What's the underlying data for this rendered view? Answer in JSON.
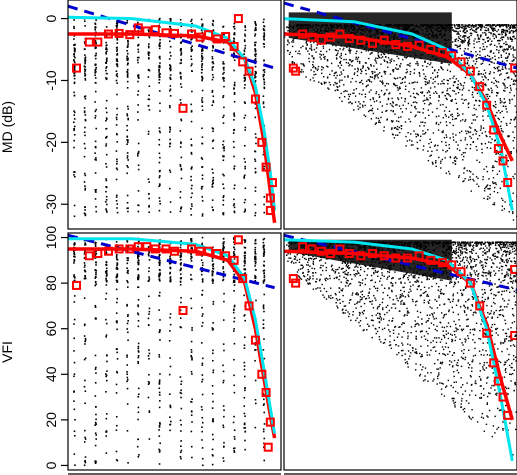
{
  "chart_data": [
    {
      "type": "scatter",
      "panel": "top-left",
      "ylabel": "MD (dB)",
      "ylim": [
        -34,
        3
      ],
      "yticks": [
        0,
        -10,
        -20,
        -30
      ],
      "x_range": [
        0,
        1
      ],
      "columns": [
        0.03,
        0.08,
        0.13,
        0.18,
        0.23,
        0.28,
        0.33,
        0.38,
        0.43,
        0.48,
        0.53,
        0.58,
        0.63,
        0.68,
        0.73,
        0.78,
        0.83,
        0.88,
        0.92
      ],
      "square_points": [
        {
          "x": 0.04,
          "y": -8
        },
        {
          "x": 0.1,
          "y": -3.8
        },
        {
          "x": 0.14,
          "y": -3.8
        },
        {
          "x": 0.19,
          "y": -2.5
        },
        {
          "x": 0.24,
          "y": -2.4
        },
        {
          "x": 0.29,
          "y": -2.6
        },
        {
          "x": 0.33,
          "y": -1.5
        },
        {
          "x": 0.37,
          "y": -2
        },
        {
          "x": 0.41,
          "y": -1.8
        },
        {
          "x": 0.46,
          "y": -2.3
        },
        {
          "x": 0.5,
          "y": -2.4
        },
        {
          "x": 0.54,
          "y": -14.5
        },
        {
          "x": 0.58,
          "y": -2.5
        },
        {
          "x": 0.62,
          "y": -3
        },
        {
          "x": 0.66,
          "y": -2.6
        },
        {
          "x": 0.7,
          "y": -3.3
        },
        {
          "x": 0.74,
          "y": -2.9
        },
        {
          "x": 0.78,
          "y": -4.5
        },
        {
          "x": 0.82,
          "y": -7
        },
        {
          "x": 0.85,
          "y": -8.5
        },
        {
          "x": 0.88,
          "y": -13
        },
        {
          "x": 0.91,
          "y": -20
        },
        {
          "x": 0.93,
          "y": -24
        },
        {
          "x": 0.95,
          "y": -29
        },
        {
          "x": 0.96,
          "y": -26.5
        },
        {
          "x": 0.95,
          "y": -31
        },
        {
          "x": 0.8,
          "y": 0
        }
      ],
      "red_curve": [
        {
          "x": 0.0,
          "y": -2.5
        },
        {
          "x": 0.3,
          "y": -2.5
        },
        {
          "x": 0.6,
          "y": -2.8
        },
        {
          "x": 0.75,
          "y": -3.8
        },
        {
          "x": 0.83,
          "y": -6.5
        },
        {
          "x": 0.88,
          "y": -12
        },
        {
          "x": 0.92,
          "y": -20
        },
        {
          "x": 0.95,
          "y": -28
        },
        {
          "x": 0.97,
          "y": -33
        }
      ],
      "cyan_curve": [
        {
          "x": 0.0,
          "y": 0.2
        },
        {
          "x": 0.3,
          "y": 0
        },
        {
          "x": 0.6,
          "y": -1.2
        },
        {
          "x": 0.75,
          "y": -3.2
        },
        {
          "x": 0.83,
          "y": -6.5
        },
        {
          "x": 0.88,
          "y": -11
        },
        {
          "x": 0.92,
          "y": -18
        },
        {
          "x": 0.95,
          "y": -25
        },
        {
          "x": 0.97,
          "y": -31
        }
      ],
      "dashed_line": [
        {
          "x": 0.0,
          "y": 2
        },
        {
          "x": 0.97,
          "y": -8
        }
      ]
    },
    {
      "type": "scatter",
      "panel": "top-right",
      "ylim": [
        -34,
        3
      ],
      "x_range": [
        0,
        1
      ],
      "square_points": [
        {
          "x": 0.04,
          "y": -8
        },
        {
          "x": 0.05,
          "y": -8.5
        },
        {
          "x": 0.08,
          "y": -2.5
        },
        {
          "x": 0.12,
          "y": -3
        },
        {
          "x": 0.16,
          "y": -3.5
        },
        {
          "x": 0.2,
          "y": -3
        },
        {
          "x": 0.24,
          "y": -2.5
        },
        {
          "x": 0.28,
          "y": -3.2
        },
        {
          "x": 0.33,
          "y": -3.5
        },
        {
          "x": 0.38,
          "y": -4
        },
        {
          "x": 0.43,
          "y": -3.5
        },
        {
          "x": 0.48,
          "y": -4.2
        },
        {
          "x": 0.53,
          "y": -4.5
        },
        {
          "x": 0.58,
          "y": -4.3
        },
        {
          "x": 0.63,
          "y": -5
        },
        {
          "x": 0.68,
          "y": -5.5
        },
        {
          "x": 0.72,
          "y": -6
        },
        {
          "x": 0.76,
          "y": -7
        },
        {
          "x": 0.8,
          "y": -8.5
        },
        {
          "x": 0.84,
          "y": -11
        },
        {
          "x": 0.87,
          "y": -14
        },
        {
          "x": 0.9,
          "y": -18
        },
        {
          "x": 0.92,
          "y": -21
        },
        {
          "x": 0.94,
          "y": -23
        },
        {
          "x": 0.96,
          "y": -26.5
        },
        {
          "x": 0.99,
          "y": -8
        }
      ],
      "red_curve": [
        {
          "x": 0.0,
          "y": -2.5
        },
        {
          "x": 0.3,
          "y": -3
        },
        {
          "x": 0.55,
          "y": -4.5
        },
        {
          "x": 0.7,
          "y": -6.2
        },
        {
          "x": 0.8,
          "y": -9
        },
        {
          "x": 0.87,
          "y": -13.5
        },
        {
          "x": 0.93,
          "y": -19
        },
        {
          "x": 0.98,
          "y": -23
        }
      ],
      "cyan_curve": [
        {
          "x": 0.0,
          "y": 0
        },
        {
          "x": 0.3,
          "y": -0.5
        },
        {
          "x": 0.55,
          "y": -2.5
        },
        {
          "x": 0.7,
          "y": -5
        },
        {
          "x": 0.8,
          "y": -9
        },
        {
          "x": 0.87,
          "y": -14
        },
        {
          "x": 0.93,
          "y": -21
        },
        {
          "x": 0.98,
          "y": -31
        }
      ],
      "dashed_line": [
        {
          "x": 0.0,
          "y": 2.5
        },
        {
          "x": 1.0,
          "y": -8
        }
      ]
    },
    {
      "type": "scatter",
      "panel": "bottom-left",
      "ylabel": "VFI",
      "ylim": [
        -2,
        102
      ],
      "yticks": [
        0,
        20,
        40,
        60,
        80,
        100
      ],
      "x_range": [
        0,
        1
      ],
      "columns": [
        0.03,
        0.08,
        0.13,
        0.18,
        0.23,
        0.28,
        0.33,
        0.38,
        0.43,
        0.48,
        0.53,
        0.58,
        0.63,
        0.68,
        0.73,
        0.78,
        0.83,
        0.88,
        0.92
      ],
      "square_points": [
        {
          "x": 0.04,
          "y": 79
        },
        {
          "x": 0.1,
          "y": 92
        },
        {
          "x": 0.14,
          "y": 93
        },
        {
          "x": 0.19,
          "y": 94
        },
        {
          "x": 0.24,
          "y": 95
        },
        {
          "x": 0.29,
          "y": 95
        },
        {
          "x": 0.33,
          "y": 96
        },
        {
          "x": 0.37,
          "y": 96
        },
        {
          "x": 0.41,
          "y": 95
        },
        {
          "x": 0.46,
          "y": 95
        },
        {
          "x": 0.5,
          "y": 94
        },
        {
          "x": 0.54,
          "y": 68
        },
        {
          "x": 0.58,
          "y": 95
        },
        {
          "x": 0.62,
          "y": 94
        },
        {
          "x": 0.66,
          "y": 94
        },
        {
          "x": 0.7,
          "y": 93
        },
        {
          "x": 0.74,
          "y": 92
        },
        {
          "x": 0.78,
          "y": 90
        },
        {
          "x": 0.82,
          "y": 82
        },
        {
          "x": 0.85,
          "y": 70
        },
        {
          "x": 0.88,
          "y": 55
        },
        {
          "x": 0.91,
          "y": 40
        },
        {
          "x": 0.93,
          "y": 32
        },
        {
          "x": 0.95,
          "y": 19
        },
        {
          "x": 0.94,
          "y": 8
        },
        {
          "x": 0.8,
          "y": 99
        }
      ],
      "red_curve": [
        {
          "x": 0.0,
          "y": 95
        },
        {
          "x": 0.3,
          "y": 95
        },
        {
          "x": 0.6,
          "y": 94
        },
        {
          "x": 0.75,
          "y": 90
        },
        {
          "x": 0.83,
          "y": 80
        },
        {
          "x": 0.88,
          "y": 60
        },
        {
          "x": 0.92,
          "y": 38
        },
        {
          "x": 0.95,
          "y": 22
        },
        {
          "x": 0.97,
          "y": 12
        }
      ],
      "cyan_curve": [
        {
          "x": 0.0,
          "y": 99.5
        },
        {
          "x": 0.3,
          "y": 99.5
        },
        {
          "x": 0.6,
          "y": 97
        },
        {
          "x": 0.75,
          "y": 92
        },
        {
          "x": 0.83,
          "y": 82
        },
        {
          "x": 0.88,
          "y": 64
        },
        {
          "x": 0.92,
          "y": 42
        },
        {
          "x": 0.95,
          "y": 25
        },
        {
          "x": 0.97,
          "y": 14
        }
      ],
      "dashed_line": [
        {
          "x": 0.0,
          "y": 101
        },
        {
          "x": 0.97,
          "y": 78
        }
      ]
    },
    {
      "type": "scatter",
      "panel": "bottom-right",
      "ylim": [
        -2,
        102
      ],
      "x_range": [
        0,
        1
      ],
      "square_points": [
        {
          "x": 0.04,
          "y": 82
        },
        {
          "x": 0.05,
          "y": 80
        },
        {
          "x": 0.08,
          "y": 96
        },
        {
          "x": 0.12,
          "y": 95
        },
        {
          "x": 0.16,
          "y": 94
        },
        {
          "x": 0.2,
          "y": 93
        },
        {
          "x": 0.24,
          "y": 95
        },
        {
          "x": 0.28,
          "y": 93
        },
        {
          "x": 0.33,
          "y": 92
        },
        {
          "x": 0.38,
          "y": 93
        },
        {
          "x": 0.43,
          "y": 92
        },
        {
          "x": 0.48,
          "y": 91
        },
        {
          "x": 0.53,
          "y": 91
        },
        {
          "x": 0.58,
          "y": 92
        },
        {
          "x": 0.63,
          "y": 90
        },
        {
          "x": 0.68,
          "y": 89
        },
        {
          "x": 0.72,
          "y": 88
        },
        {
          "x": 0.76,
          "y": 85
        },
        {
          "x": 0.8,
          "y": 80
        },
        {
          "x": 0.84,
          "y": 70
        },
        {
          "x": 0.87,
          "y": 58
        },
        {
          "x": 0.9,
          "y": 45
        },
        {
          "x": 0.92,
          "y": 37
        },
        {
          "x": 0.94,
          "y": 30
        },
        {
          "x": 0.96,
          "y": 22
        },
        {
          "x": 0.99,
          "y": 86
        },
        {
          "x": 0.99,
          "y": 57
        }
      ],
      "red_curve": [
        {
          "x": 0.0,
          "y": 94
        },
        {
          "x": 0.3,
          "y": 93
        },
        {
          "x": 0.55,
          "y": 91
        },
        {
          "x": 0.7,
          "y": 88
        },
        {
          "x": 0.8,
          "y": 80
        },
        {
          "x": 0.87,
          "y": 62
        },
        {
          "x": 0.93,
          "y": 38
        },
        {
          "x": 0.98,
          "y": 20
        }
      ],
      "cyan_curve": [
        {
          "x": 0.0,
          "y": 99
        },
        {
          "x": 0.3,
          "y": 98
        },
        {
          "x": 0.55,
          "y": 95
        },
        {
          "x": 0.7,
          "y": 90
        },
        {
          "x": 0.8,
          "y": 80
        },
        {
          "x": 0.87,
          "y": 60
        },
        {
          "x": 0.93,
          "y": 30
        },
        {
          "x": 0.98,
          "y": 2
        }
      ],
      "dashed_line": [
        {
          "x": 0.0,
          "y": 101
        },
        {
          "x": 1.0,
          "y": 77
        }
      ]
    }
  ],
  "colors": {
    "points": "#000000",
    "squares": "#ff0000",
    "red_curve": "#ff0000",
    "cyan_curve": "#00e5ee",
    "dashed_line": "#0000cd",
    "frame": "#000000"
  }
}
